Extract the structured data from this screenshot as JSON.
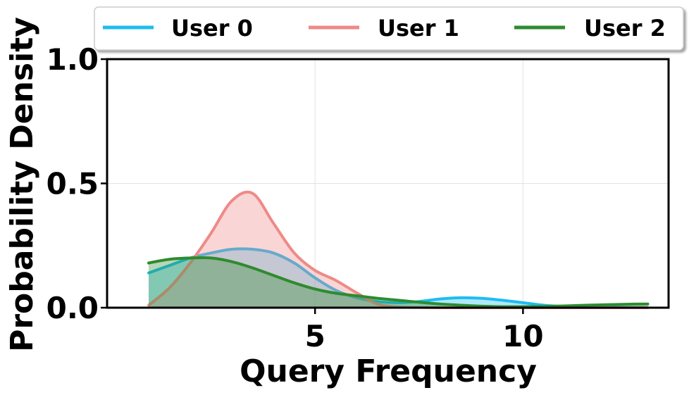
{
  "chart_data": {
    "type": "area",
    "xlabel": "Query Frequency",
    "ylabel": "Probability Density",
    "xlim": [
      0.0,
      13.5
    ],
    "ylim": [
      0.0,
      1.0
    ],
    "xticks": [
      5,
      10
    ],
    "yticks": [
      0.0,
      0.5,
      1.0
    ],
    "xtick_labels": [
      "5",
      "10"
    ],
    "ytick_labels": [
      "0.0",
      "0.5",
      "1.0"
    ],
    "grid": true,
    "legend_position": "top, outside plot, 3 columns",
    "series": [
      {
        "name": "User 0",
        "color": "#1ebcf0",
        "x": [
          0.5,
          1.0,
          1.5,
          2.0,
          2.5,
          3.0,
          3.5,
          4.0,
          4.5,
          5.0,
          5.5,
          6.0,
          6.5,
          7.0,
          7.5,
          8.0,
          8.5,
          9.0,
          9.5,
          10.0,
          10.5,
          11.0,
          11.5,
          12.0,
          12.5,
          12.5
        ],
        "values": [
          0.14,
          0.17,
          0.2,
          0.22,
          0.235,
          0.235,
          0.22,
          0.18,
          0.12,
          0.07,
          0.04,
          0.025,
          0.02,
          0.025,
          0.035,
          0.04,
          0.038,
          0.03,
          0.02,
          0.01,
          0.005,
          0.003,
          0.002,
          0.001,
          0.0,
          0.0
        ]
      },
      {
        "name": "User 1",
        "color": "#ee8a88",
        "x": [
          0.5,
          1.0,
          1.5,
          2.0,
          2.5,
          3.0,
          3.5,
          4.0,
          4.5,
          5.0,
          5.5,
          6.0,
          6.5,
          7.0,
          7.5,
          8.0,
          9.0,
          10.0,
          11.0,
          12.0,
          12.5
        ],
        "values": [
          0.01,
          0.08,
          0.18,
          0.3,
          0.43,
          0.46,
          0.34,
          0.22,
          0.15,
          0.11,
          0.06,
          0.015,
          0.003,
          0.001,
          0.0,
          0.0,
          0.0,
          0.0,
          0.0,
          0.0,
          0.0
        ]
      },
      {
        "name": "User 2",
        "color": "#2e8b2e",
        "x": [
          0.5,
          1.0,
          1.5,
          2.0,
          2.5,
          3.0,
          3.5,
          4.0,
          4.5,
          5.0,
          5.5,
          6.0,
          6.5,
          7.0,
          7.5,
          8.0,
          8.5,
          9.0,
          9.5,
          10.0,
          10.5,
          11.0,
          11.5,
          12.0,
          12.5
        ],
        "values": [
          0.18,
          0.195,
          0.2,
          0.2,
          0.185,
          0.16,
          0.13,
          0.1,
          0.075,
          0.058,
          0.048,
          0.038,
          0.03,
          0.022,
          0.015,
          0.01,
          0.006,
          0.004,
          0.004,
          0.005,
          0.007,
          0.01,
          0.012,
          0.014,
          0.015
        ]
      }
    ]
  }
}
